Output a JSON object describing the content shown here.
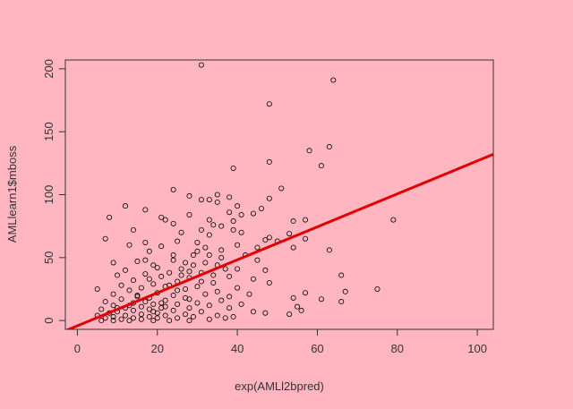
{
  "page": {
    "background": "#ffb6c1"
  },
  "chart_data": {
    "type": "scatter",
    "xlabel": "exp(AMLl2bpred)",
    "ylabel": "AMLlearn1$mboss",
    "xlim": [
      -3,
      104
    ],
    "ylim": [
      -7,
      207
    ],
    "xticks": [
      0,
      20,
      40,
      60,
      80,
      100
    ],
    "yticks": [
      0,
      50,
      100,
      150,
      200
    ],
    "grid": false,
    "legend": "none",
    "point_style": "open-circle",
    "point_color": "#000000",
    "fit_line": {
      "color": "#e00000",
      "slope": 1.31,
      "intercept": -4.2
    },
    "points": [
      [
        31,
        203
      ],
      [
        64,
        191
      ],
      [
        48,
        172
      ],
      [
        63,
        138
      ],
      [
        58,
        135
      ],
      [
        48,
        126
      ],
      [
        61,
        123
      ],
      [
        39,
        121
      ],
      [
        51,
        105
      ],
      [
        24,
        104
      ],
      [
        35,
        100
      ],
      [
        28,
        99
      ],
      [
        38,
        98
      ],
      [
        48,
        97
      ],
      [
        33,
        96
      ],
      [
        35,
        94
      ],
      [
        31,
        96
      ],
      [
        12,
        91
      ],
      [
        40,
        91
      ],
      [
        46,
        89
      ],
      [
        17,
        88
      ],
      [
        38,
        86
      ],
      [
        44,
        85
      ],
      [
        41,
        84
      ],
      [
        28,
        84
      ],
      [
        21,
        82
      ],
      [
        8,
        82
      ],
      [
        22,
        80
      ],
      [
        33,
        80
      ],
      [
        39,
        79
      ],
      [
        54,
        79
      ],
      [
        79,
        80
      ],
      [
        57,
        80
      ],
      [
        34,
        76
      ],
      [
        24,
        77
      ],
      [
        36,
        75
      ],
      [
        39,
        72
      ],
      [
        31,
        72
      ],
      [
        14,
        72
      ],
      [
        41,
        70
      ],
      [
        33,
        68
      ],
      [
        53,
        69
      ],
      [
        48,
        66
      ],
      [
        7,
        65
      ],
      [
        57,
        65
      ],
      [
        47,
        64
      ],
      [
        25,
        63
      ],
      [
        17,
        62
      ],
      [
        63,
        56
      ],
      [
        13,
        60
      ],
      [
        40,
        60
      ],
      [
        21,
        59
      ],
      [
        32,
        58
      ],
      [
        54,
        58
      ],
      [
        30,
        55
      ],
      [
        18,
        55
      ],
      [
        29,
        52
      ],
      [
        33,
        52
      ],
      [
        36,
        50
      ],
      [
        24,
        48
      ],
      [
        45,
        48
      ],
      [
        15,
        47
      ],
      [
        9,
        46
      ],
      [
        27,
        46
      ],
      [
        19,
        44
      ],
      [
        35,
        44
      ],
      [
        40,
        41
      ],
      [
        26,
        41
      ],
      [
        12,
        40
      ],
      [
        47,
        40
      ],
      [
        23,
        38
      ],
      [
        31,
        38
      ],
      [
        17,
        37
      ],
      [
        10,
        36
      ],
      [
        66,
        36
      ],
      [
        21,
        35
      ],
      [
        38,
        35
      ],
      [
        28,
        34
      ],
      [
        44,
        33
      ],
      [
        14,
        32
      ],
      [
        25,
        31
      ],
      [
        48,
        30
      ],
      [
        34,
        30
      ],
      [
        19,
        29
      ],
      [
        11,
        28
      ],
      [
        30,
        27
      ],
      [
        22,
        27
      ],
      [
        5,
        25
      ],
      [
        16,
        26
      ],
      [
        40,
        26
      ],
      [
        75,
        25
      ],
      [
        27,
        25
      ],
      [
        67,
        23
      ],
      [
        13,
        24
      ],
      [
        35,
        23
      ],
      [
        20,
        22
      ],
      [
        57,
        22
      ],
      [
        9,
        21
      ],
      [
        32,
        21
      ],
      [
        43,
        21
      ],
      [
        24,
        20
      ],
      [
        15,
        20
      ],
      [
        38,
        19
      ],
      [
        54,
        18
      ],
      [
        61,
        17
      ],
      [
        18,
        18
      ],
      [
        28,
        17
      ],
      [
        11,
        17
      ],
      [
        36,
        16
      ],
      [
        22,
        16
      ],
      [
        66,
        15
      ],
      [
        7,
        15
      ],
      [
        14,
        14
      ],
      [
        30,
        14
      ],
      [
        19,
        13
      ],
      [
        41,
        13
      ],
      [
        25,
        13
      ],
      [
        9,
        12
      ],
      [
        33,
        12
      ],
      [
        55,
        11
      ],
      [
        16,
        11
      ],
      [
        12,
        10
      ],
      [
        21,
        10
      ],
      [
        28,
        10
      ],
      [
        38,
        10
      ],
      [
        6,
        9
      ],
      [
        18,
        9
      ],
      [
        56,
        8
      ],
      [
        14,
        8
      ],
      [
        24,
        8
      ],
      [
        10,
        7
      ],
      [
        31,
        7
      ],
      [
        44,
        7
      ],
      [
        47,
        6
      ],
      [
        20,
        6
      ],
      [
        8,
        6
      ],
      [
        27,
        5
      ],
      [
        53,
        5
      ],
      [
        16,
        5
      ],
      [
        12,
        4
      ],
      [
        35,
        4
      ],
      [
        5,
        4
      ],
      [
        22,
        4
      ],
      [
        39,
        3
      ],
      [
        18,
        3
      ],
      [
        9,
        3
      ],
      [
        29,
        3
      ],
      [
        14,
        2
      ],
      [
        25,
        2
      ],
      [
        7,
        2
      ],
      [
        20,
        2
      ],
      [
        11,
        1
      ],
      [
        33,
        1
      ],
      [
        16,
        1
      ],
      [
        6,
        0
      ],
      [
        23,
        0
      ],
      [
        13,
        0
      ],
      [
        19,
        0
      ],
      [
        28,
        0
      ],
      [
        9,
        0
      ],
      [
        37,
        2
      ],
      [
        17,
        15
      ],
      [
        23,
        28
      ],
      [
        26,
        36
      ],
      [
        20,
        42
      ],
      [
        29,
        44
      ],
      [
        18,
        33
      ],
      [
        25,
        24
      ],
      [
        15,
        19
      ],
      [
        21,
        14
      ],
      [
        27,
        18
      ],
      [
        13,
        12
      ],
      [
        19,
        7
      ],
      [
        10,
        10
      ],
      [
        22,
        11
      ],
      [
        31,
        31
      ],
      [
        34,
        36
      ],
      [
        37,
        41
      ],
      [
        24,
        52
      ],
      [
        28,
        39
      ],
      [
        17,
        48
      ],
      [
        32,
        46
      ],
      [
        30,
        62
      ],
      [
        26,
        70
      ],
      [
        36,
        56
      ],
      [
        42,
        52
      ],
      [
        45,
        58
      ],
      [
        50,
        63
      ]
    ]
  }
}
